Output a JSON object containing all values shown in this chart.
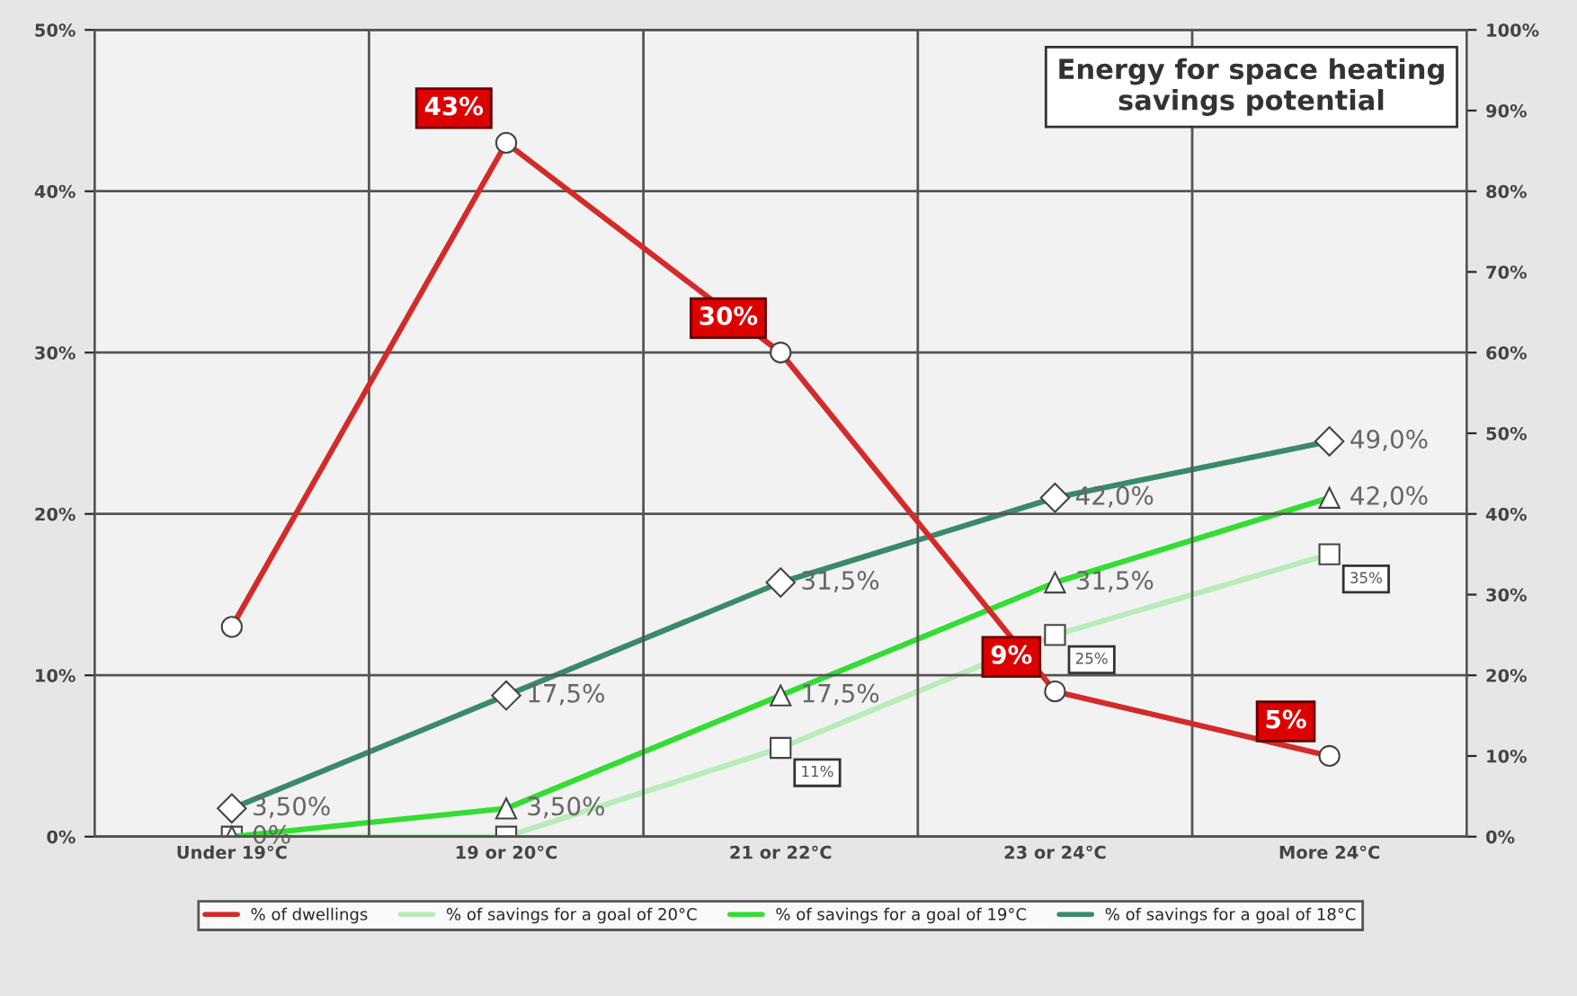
{
  "chart_data": {
    "type": "line",
    "title": "Energy for space heating\nsavings potential",
    "categories": [
      "Under 19°C",
      "19 or 20°C",
      "21 or 22°C",
      "23 or 24°C",
      "More 24°C"
    ],
    "series": [
      {
        "name": "% of dwellings",
        "color": "#d42a2a",
        "marker": "circle",
        "values": [
          13,
          43,
          30,
          9,
          5
        ],
        "value_labels": [
          null,
          "43%",
          "30%",
          "9%",
          "5%"
        ]
      },
      {
        "name": "% of savings for a goal of 20°C",
        "color": "#b8ecb8",
        "marker": "square",
        "axis": "y2",
        "values": [
          0,
          0,
          11,
          25,
          35
        ],
        "value_labels": [
          null,
          null,
          "11%",
          "25%",
          "35%"
        ]
      },
      {
        "name": "% of savings for a goal of 19°C",
        "color": "#33dd33",
        "marker": "triangle",
        "axis": "y2",
        "values": [
          0,
          3.5,
          17.5,
          31.5,
          42.0
        ],
        "value_labels": [
          "0%",
          "3,50%",
          "17,5%",
          "31,5%",
          "42,0%"
        ]
      },
      {
        "name": "% of savings for a goal of 18°C",
        "color": "#3a8a6a",
        "marker": "diamond",
        "axis": "y2",
        "values": [
          3.5,
          17.5,
          31.5,
          42.0,
          49.0
        ],
        "value_labels": [
          "3,50%",
          "17,5%",
          "31,5%",
          "42,0%",
          "49,0%"
        ]
      }
    ],
    "ylim": [
      0,
      50
    ],
    "yticks": [
      {
        "value": 0,
        "label": "0%"
      },
      {
        "value": 10,
        "label": "10%"
      },
      {
        "value": 20,
        "label": "20%"
      },
      {
        "value": 30,
        "label": "30%"
      },
      {
        "value": 40,
        "label": "40%"
      },
      {
        "value": 50,
        "label": "50%"
      }
    ],
    "y2lim": [
      0,
      100
    ],
    "y2ticks": [
      {
        "value": 0,
        "label": "0%"
      },
      {
        "value": 10,
        "label": "10%"
      },
      {
        "value": 20,
        "label": "20%"
      },
      {
        "value": 30,
        "label": "30%"
      },
      {
        "value": 40,
        "label": "40%"
      },
      {
        "value": 50,
        "label": "50%"
      },
      {
        "value": 60,
        "label": "60%"
      },
      {
        "value": 70,
        "label": "70%"
      },
      {
        "value": 80,
        "label": "80%"
      },
      {
        "value": 90,
        "label": "90%"
      },
      {
        "value": 100,
        "label": "100%"
      }
    ],
    "grid": true,
    "legend": "bottom",
    "line_style": "solid"
  }
}
